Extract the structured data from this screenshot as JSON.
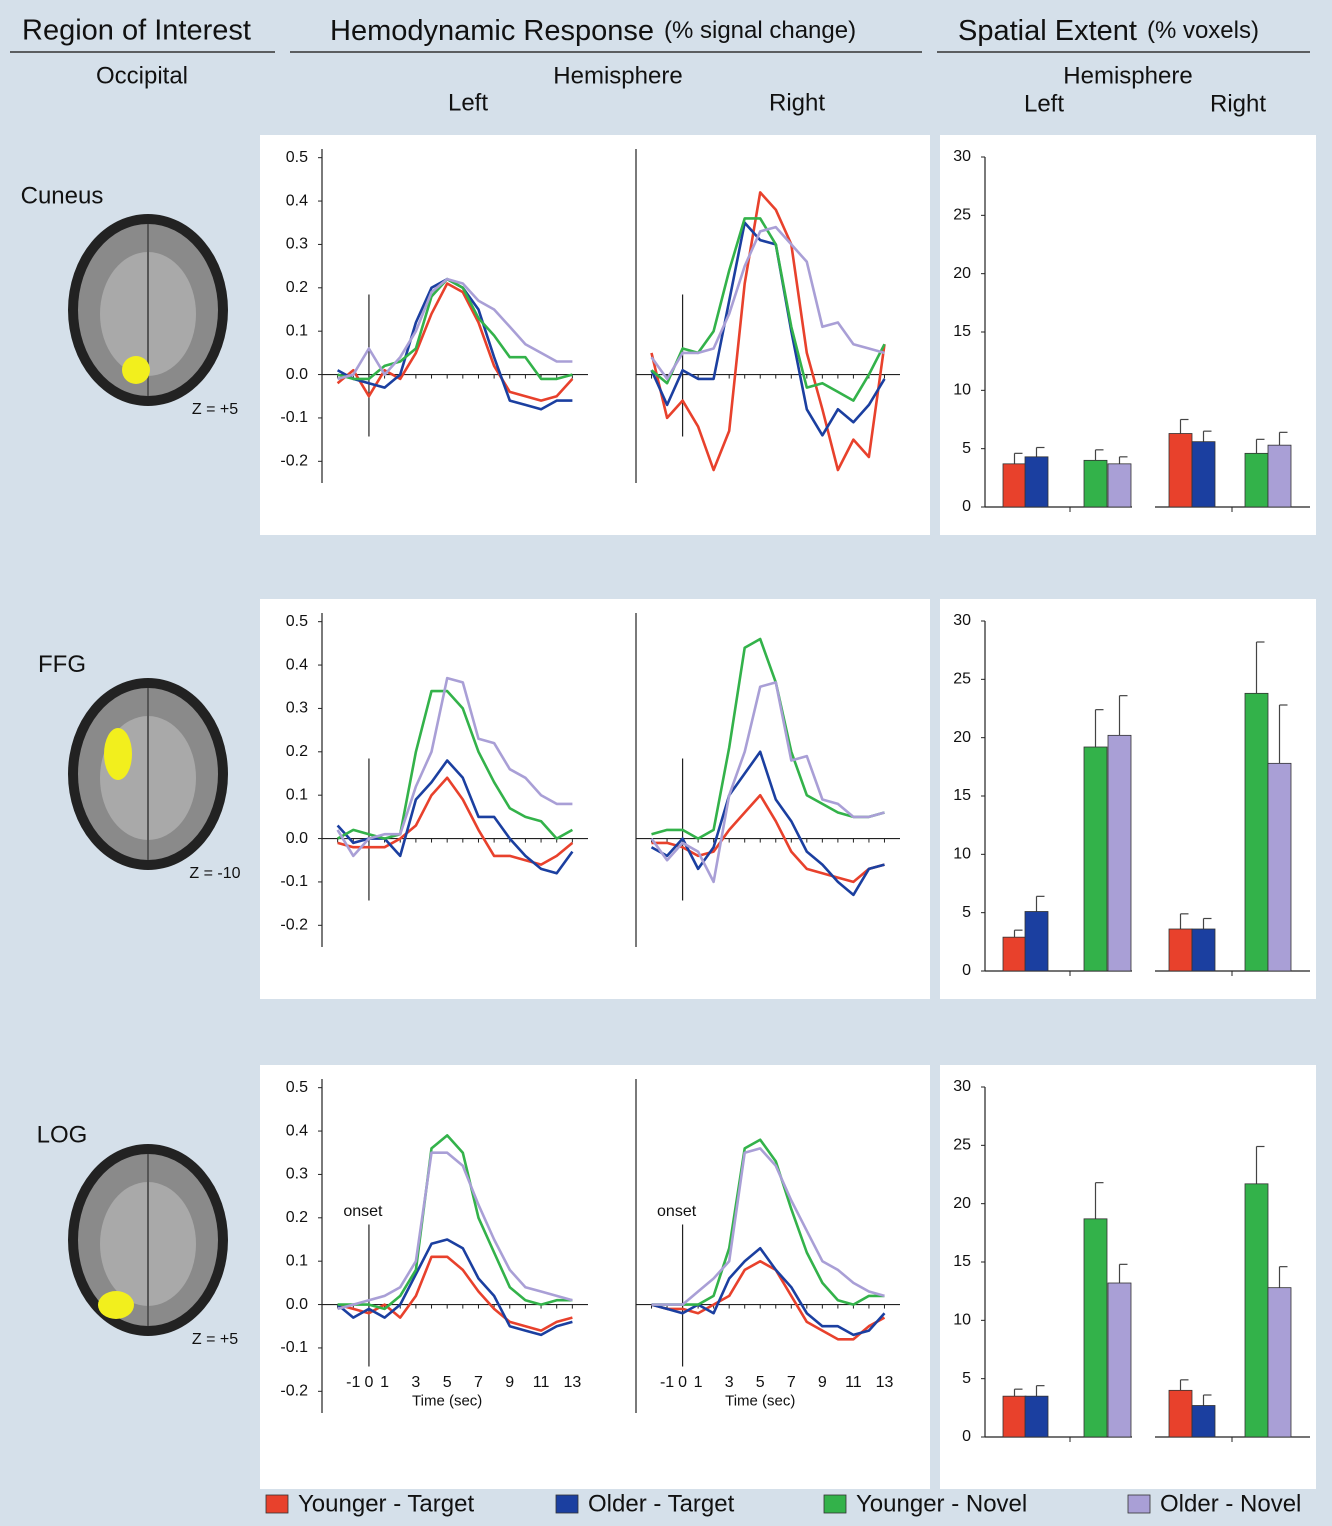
{
  "header": {
    "roi": "Region of Interest",
    "roi_sub": "Occipital",
    "hemo": "Hemodynamic Response",
    "hemo_unit": "(% signal change)",
    "hemo_hemisphere": "Hemisphere",
    "hemo_left": "Left",
    "hemo_right": "Right",
    "spatial": "Spatial Extent",
    "spatial_unit": "(% voxels)",
    "spatial_hemisphere": "Hemisphere",
    "spatial_left": "Left",
    "spatial_right": "Right"
  },
  "legend": [
    {
      "name": "Younger - Target",
      "color": "#e8412c"
    },
    {
      "name": "Older - Target",
      "color": "#1b3fa0"
    },
    {
      "name": "Younger - Novel",
      "color": "#33b24a"
    },
    {
      "name": "Older - Novel",
      "color": "#a99fd6"
    }
  ],
  "rows": [
    {
      "region": "Cuneus",
      "z": "Z = +5"
    },
    {
      "region": "FFG",
      "z": "Z = -10"
    },
    {
      "region": "LOG",
      "z": "Z = +5"
    }
  ],
  "chart_data": [
    {
      "type": "line",
      "x": [
        -2,
        -1,
        0,
        1,
        2,
        3,
        4,
        5,
        6,
        7,
        8,
        9,
        10,
        11,
        12,
        13
      ],
      "xlim": [
        -3,
        14
      ],
      "ylim": [
        -0.25,
        0.52
      ],
      "onset": 0,
      "yticks": [
        0.5,
        0.4,
        0.3,
        0.2,
        0.1,
        {
          "value": 0,
          "label": "0.0"
        },
        -0.1,
        -0.2
      ],
      "series": [
        {
          "values": [
            -0.02,
            0.01,
            -0.05,
            0.01,
            -0.01,
            0.05,
            0.14,
            0.21,
            0.19,
            0.12,
            0.02,
            -0.04,
            -0.05,
            -0.06,
            -0.05,
            -0.01
          ]
        },
        {
          "values": [
            0.01,
            -0.01,
            -0.02,
            -0.03,
            0.0,
            0.12,
            0.2,
            0.22,
            0.2,
            0.15,
            0.04,
            -0.06,
            -0.07,
            -0.08,
            -0.06,
            -0.06
          ]
        },
        {
          "values": [
            0.0,
            -0.01,
            -0.01,
            0.02,
            0.03,
            0.06,
            0.18,
            0.22,
            0.2,
            0.13,
            0.09,
            0.04,
            0.04,
            -0.01,
            -0.01,
            0.0
          ]
        },
        {
          "values": [
            -0.01,
            0.0,
            0.06,
            0.0,
            0.04,
            0.1,
            0.19,
            0.22,
            0.21,
            0.17,
            0.15,
            0.11,
            0.07,
            0.05,
            0.03,
            0.03
          ]
        }
      ]
    },
    {
      "type": "line",
      "x": [
        -2,
        -1,
        0,
        1,
        2,
        3,
        4,
        5,
        6,
        7,
        8,
        9,
        10,
        11,
        12,
        13
      ],
      "xlim": [
        -3,
        14
      ],
      "ylim": [
        -0.25,
        0.52
      ],
      "onset": 0,
      "series": [
        {
          "values": [
            0.05,
            -0.1,
            -0.06,
            -0.12,
            -0.22,
            -0.13,
            0.21,
            0.42,
            0.38,
            0.3,
            0.05,
            -0.08,
            -0.22,
            -0.15,
            -0.19,
            0.07
          ]
        },
        {
          "values": [
            0.01,
            -0.07,
            0.01,
            -0.01,
            -0.01,
            0.17,
            0.35,
            0.31,
            0.3,
            0.1,
            -0.08,
            -0.14,
            -0.08,
            -0.11,
            -0.07,
            -0.01
          ]
        },
        {
          "values": [
            0.01,
            -0.02,
            0.06,
            0.05,
            0.1,
            0.24,
            0.36,
            0.36,
            0.3,
            0.11,
            -0.03,
            -0.02,
            -0.04,
            -0.06,
            0.0,
            0.07
          ]
        },
        {
          "values": [
            0.04,
            -0.01,
            0.05,
            0.05,
            0.06,
            0.14,
            0.25,
            0.33,
            0.34,
            0.3,
            0.26,
            0.11,
            0.12,
            0.07,
            0.06,
            0.05
          ]
        }
      ]
    },
    {
      "type": "bar",
      "ylim": [
        0,
        30
      ],
      "yticks": [
        0,
        5,
        10,
        15,
        20,
        25,
        30
      ],
      "series": [
        {
          "values": [
            3.7,
            6.3
          ],
          "errors": [
            0.9,
            1.2
          ]
        },
        {
          "values": [
            4.3,
            5.6
          ],
          "errors": [
            0.8,
            0.9
          ]
        },
        {
          "values": [
            4.0,
            4.6
          ],
          "errors": [
            0.9,
            1.2
          ]
        },
        {
          "values": [
            3.7,
            5.3
          ],
          "errors": [
            0.6,
            1.1
          ]
        }
      ]
    },
    {
      "type": "line",
      "x": [
        -2,
        -1,
        0,
        1,
        2,
        3,
        4,
        5,
        6,
        7,
        8,
        9,
        10,
        11,
        12,
        13
      ],
      "xlim": [
        -3,
        14
      ],
      "ylim": [
        -0.25,
        0.52
      ],
      "onset": 0,
      "yticks": [
        0.5,
        0.4,
        0.3,
        0.2,
        0.1,
        {
          "value": 0,
          "label": "0.0"
        },
        -0.1,
        -0.2
      ],
      "series": [
        {
          "values": [
            -0.01,
            -0.02,
            -0.02,
            -0.02,
            0.0,
            0.03,
            0.1,
            0.14,
            0.09,
            0.02,
            -0.04,
            -0.04,
            -0.05,
            -0.06,
            -0.04,
            -0.01
          ]
        },
        {
          "values": [
            0.03,
            -0.01,
            0.0,
            0.0,
            -0.04,
            0.09,
            0.13,
            0.18,
            0.14,
            0.05,
            0.05,
            0.0,
            -0.04,
            -0.07,
            -0.08,
            -0.03
          ]
        },
        {
          "values": [
            0.0,
            0.02,
            0.01,
            0.0,
            0.01,
            0.2,
            0.34,
            0.34,
            0.3,
            0.2,
            0.13,
            0.07,
            0.05,
            0.04,
            0.0,
            0.02
          ]
        },
        {
          "values": [
            0.02,
            -0.04,
            0.0,
            0.01,
            0.01,
            0.12,
            0.2,
            0.37,
            0.36,
            0.23,
            0.22,
            0.16,
            0.14,
            0.1,
            0.08,
            0.08
          ]
        }
      ]
    },
    {
      "type": "line",
      "x": [
        -2,
        -1,
        0,
        1,
        2,
        3,
        4,
        5,
        6,
        7,
        8,
        9,
        10,
        11,
        12,
        13
      ],
      "xlim": [
        -3,
        14
      ],
      "ylim": [
        -0.25,
        0.52
      ],
      "onset": 0,
      "series": [
        {
          "values": [
            -0.01,
            -0.01,
            -0.02,
            -0.04,
            -0.03,
            0.02,
            0.06,
            0.1,
            0.04,
            -0.03,
            -0.07,
            -0.08,
            -0.09,
            -0.1,
            -0.07,
            -0.06
          ]
        },
        {
          "values": [
            -0.02,
            -0.04,
            0.0,
            -0.07,
            -0.02,
            0.1,
            0.15,
            0.2,
            0.09,
            0.04,
            -0.03,
            -0.06,
            -0.1,
            -0.13,
            -0.07,
            -0.06
          ]
        },
        {
          "values": [
            0.01,
            0.02,
            0.02,
            0.0,
            0.02,
            0.21,
            0.44,
            0.46,
            0.36,
            0.2,
            0.1,
            0.08,
            0.06,
            0.05,
            0.05,
            0.06
          ]
        },
        {
          "values": [
            0.0,
            -0.05,
            -0.01,
            -0.03,
            -0.1,
            0.1,
            0.2,
            0.35,
            0.36,
            0.18,
            0.19,
            0.09,
            0.08,
            0.05,
            0.05,
            0.06
          ]
        }
      ]
    },
    {
      "type": "bar",
      "ylim": [
        0,
        30
      ],
      "yticks": [
        0,
        5,
        10,
        15,
        20,
        25,
        30
      ],
      "series": [
        {
          "values": [
            2.9,
            3.6
          ],
          "errors": [
            0.6,
            1.3
          ]
        },
        {
          "values": [
            5.1,
            3.6
          ],
          "errors": [
            1.3,
            0.9
          ]
        },
        {
          "values": [
            19.2,
            23.8
          ],
          "errors": [
            3.2,
            4.4
          ]
        },
        {
          "values": [
            20.2,
            17.8
          ],
          "errors": [
            3.4,
            5.0
          ]
        }
      ]
    },
    {
      "type": "line",
      "x": [
        -2,
        -1,
        0,
        1,
        2,
        3,
        4,
        5,
        6,
        7,
        8,
        9,
        10,
        11,
        12,
        13
      ],
      "xlim": [
        -3,
        14
      ],
      "ylim": [
        -0.25,
        0.52
      ],
      "onset": 0,
      "annotation": "onset",
      "xlabel": "Time (sec)",
      "xticks": [
        -1,
        0,
        1,
        3,
        5,
        7,
        9,
        11,
        13
      ],
      "yticks": [
        0.5,
        0.4,
        0.3,
        0.2,
        0.1,
        {
          "value": 0,
          "label": "0.0"
        },
        -0.1,
        -0.2
      ],
      "series": [
        {
          "values": [
            0.0,
            -0.01,
            -0.02,
            0.0,
            -0.03,
            0.02,
            0.11,
            0.11,
            0.08,
            0.03,
            -0.01,
            -0.04,
            -0.05,
            -0.06,
            -0.04,
            -0.03
          ]
        },
        {
          "values": [
            0.0,
            -0.03,
            -0.01,
            -0.03,
            0.0,
            0.07,
            0.14,
            0.15,
            0.13,
            0.06,
            0.02,
            -0.05,
            -0.06,
            -0.07,
            -0.05,
            -0.04
          ]
        },
        {
          "values": [
            0.0,
            0.0,
            0.0,
            -0.01,
            0.02,
            0.08,
            0.36,
            0.39,
            0.35,
            0.2,
            0.12,
            0.04,
            0.01,
            0.0,
            0.01,
            0.01
          ]
        },
        {
          "values": [
            -0.01,
            0.0,
            0.01,
            0.02,
            0.04,
            0.1,
            0.35,
            0.35,
            0.32,
            0.23,
            0.15,
            0.08,
            0.04,
            0.03,
            0.02,
            0.01
          ]
        }
      ]
    },
    {
      "type": "line",
      "x": [
        -2,
        -1,
        0,
        1,
        2,
        3,
        4,
        5,
        6,
        7,
        8,
        9,
        10,
        11,
        12,
        13
      ],
      "xlim": [
        -3,
        14
      ],
      "ylim": [
        -0.25,
        0.52
      ],
      "onset": 0,
      "annotation": "onset",
      "xlabel": "Time (sec)",
      "xticks": [
        -1,
        0,
        1,
        3,
        5,
        7,
        9,
        11,
        13
      ],
      "series": [
        {
          "values": [
            0.0,
            -0.01,
            -0.01,
            -0.02,
            0.0,
            0.02,
            0.08,
            0.1,
            0.08,
            0.02,
            -0.04,
            -0.06,
            -0.08,
            -0.08,
            -0.05,
            -0.03
          ]
        },
        {
          "values": [
            0.0,
            -0.01,
            -0.02,
            0.0,
            -0.02,
            0.06,
            0.1,
            0.13,
            0.08,
            0.04,
            -0.02,
            -0.05,
            -0.05,
            -0.07,
            -0.06,
            -0.02
          ]
        },
        {
          "values": [
            0.0,
            0.0,
            0.0,
            0.0,
            0.02,
            0.13,
            0.36,
            0.38,
            0.33,
            0.22,
            0.12,
            0.05,
            0.01,
            0.0,
            0.02,
            0.02
          ]
        },
        {
          "values": [
            0.0,
            0.0,
            0.0,
            0.03,
            0.06,
            0.1,
            0.35,
            0.36,
            0.32,
            0.24,
            0.17,
            0.1,
            0.08,
            0.05,
            0.03,
            0.02
          ]
        }
      ]
    },
    {
      "type": "bar",
      "ylim": [
        0,
        30
      ],
      "yticks": [
        0,
        5,
        10,
        15,
        20,
        25,
        30
      ],
      "series": [
        {
          "values": [
            3.5,
            4.0
          ],
          "errors": [
            0.6,
            0.9
          ]
        },
        {
          "values": [
            3.5,
            2.7
          ],
          "errors": [
            0.9,
            0.9
          ]
        },
        {
          "values": [
            18.7,
            21.7
          ],
          "errors": [
            3.1,
            3.2
          ]
        },
        {
          "values": [
            13.2,
            12.8
          ],
          "errors": [
            1.6,
            1.8
          ]
        }
      ]
    }
  ]
}
